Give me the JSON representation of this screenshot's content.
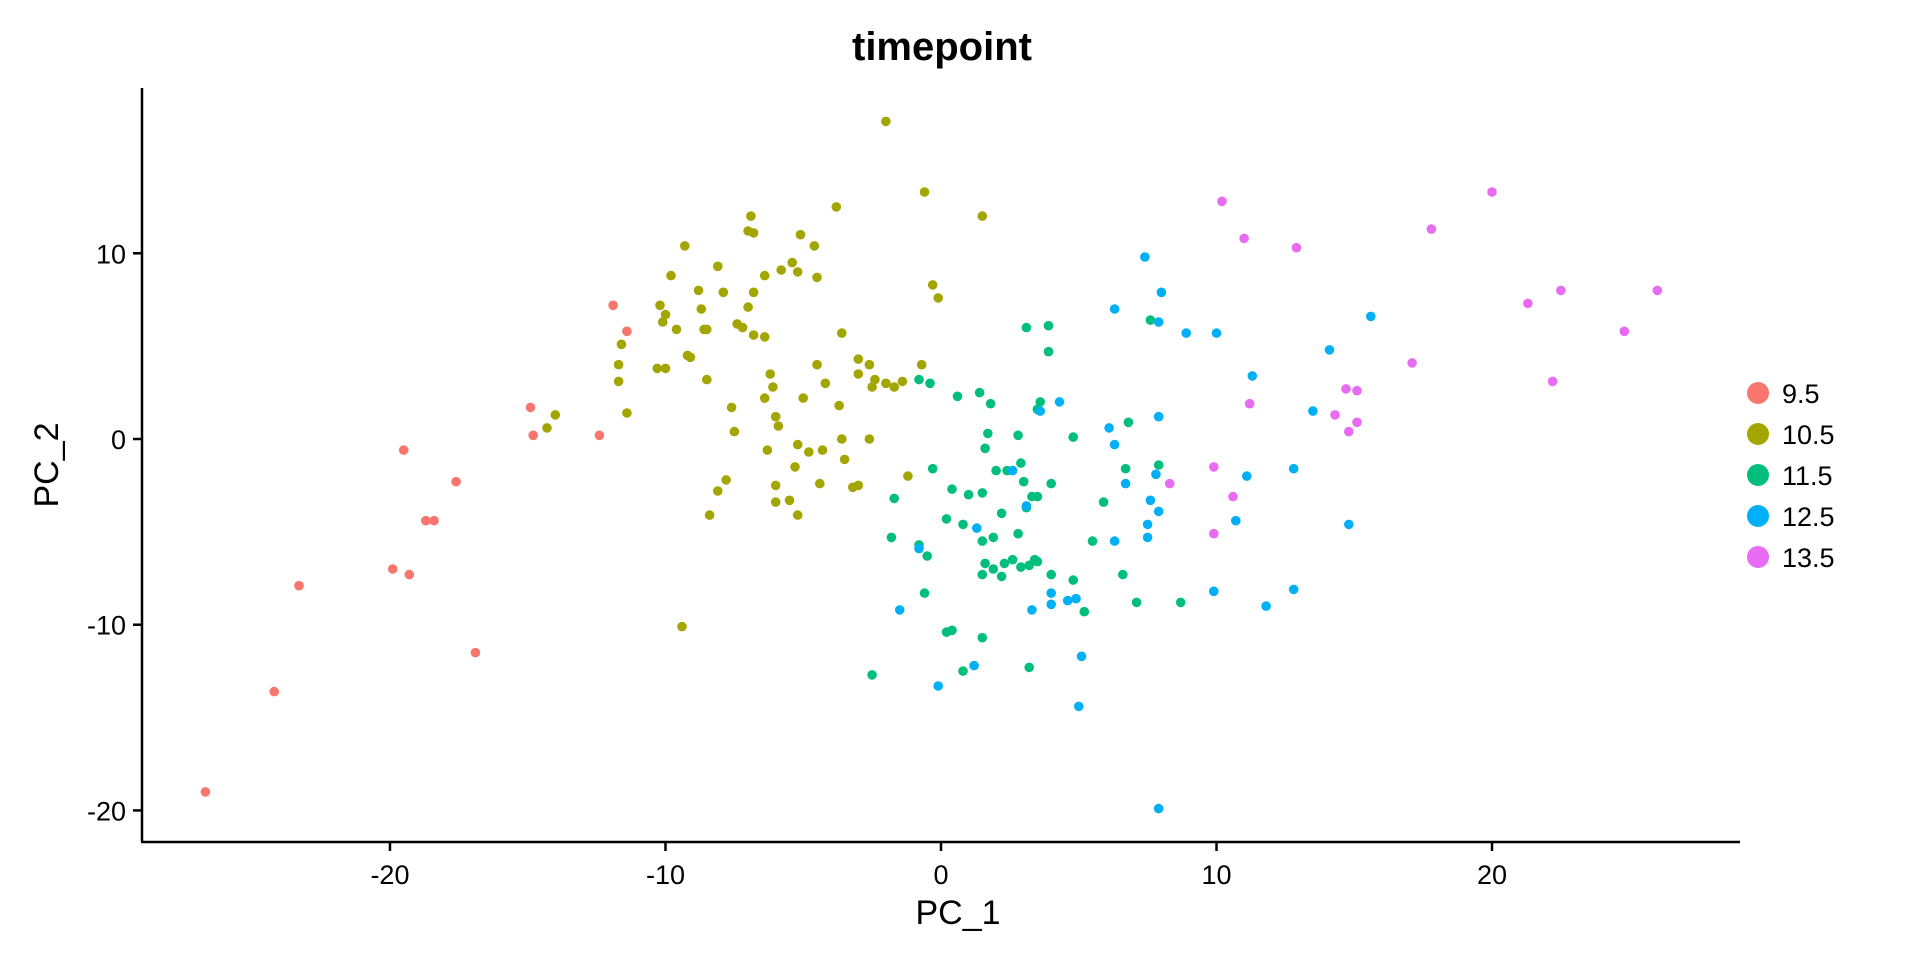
{
  "chart_data": {
    "type": "scatter",
    "title": "timepoint",
    "xlabel": "PC_1",
    "ylabel": "PC_2",
    "xlim": [
      -29,
      29
    ],
    "ylim": [
      -21.7,
      18.9
    ],
    "xticks": [
      -20,
      -10,
      0,
      10,
      20
    ],
    "yticks": [
      -20,
      -10,
      0,
      10
    ],
    "grid": false,
    "legend": "right",
    "series": [
      {
        "name": "9.5",
        "color": "#F8766D",
        "points": [
          [
            -26.7,
            -19
          ],
          [
            -24.2,
            -13.6
          ],
          [
            -23.3,
            -7.9
          ],
          [
            -19.9,
            -7
          ],
          [
            -19.3,
            -7.3
          ],
          [
            -18.7,
            -4.4
          ],
          [
            -18.4,
            -4.4
          ],
          [
            -17.6,
            -2.3
          ],
          [
            -16.9,
            -11.5
          ],
          [
            -19.5,
            -0.6
          ],
          [
            -14.9,
            1.7
          ],
          [
            -14.8,
            0.2
          ],
          [
            -12.4,
            0.2
          ],
          [
            -11.9,
            7.2
          ],
          [
            -11.4,
            5.8
          ]
        ]
      },
      {
        "name": "10.5",
        "color": "#A3A500",
        "points": [
          [
            -2.0,
            17.1
          ],
          [
            -0.6,
            13.3
          ],
          [
            1.5,
            12
          ],
          [
            -3.8,
            12.5
          ],
          [
            -6.9,
            12
          ],
          [
            -7.0,
            11.2
          ],
          [
            -6.8,
            11.1
          ],
          [
            -5.1,
            11
          ],
          [
            -9.3,
            10.4
          ],
          [
            -4.6,
            10.4
          ],
          [
            -5.4,
            9.5
          ],
          [
            -8.1,
            9.3
          ],
          [
            -5.8,
            9.1
          ],
          [
            -5.2,
            9
          ],
          [
            -6.4,
            8.8
          ],
          [
            -9.8,
            8.8
          ],
          [
            -4.5,
            8.7
          ],
          [
            -8.8,
            8
          ],
          [
            -7.9,
            7.9
          ],
          [
            -6.8,
            7.9
          ],
          [
            -0.3,
            8.3
          ],
          [
            -0.1,
            7.6
          ],
          [
            -10.2,
            7.2
          ],
          [
            -8.7,
            7
          ],
          [
            -7.0,
            7.1
          ],
          [
            -10.0,
            6.7
          ],
          [
            -7.4,
            6.2
          ],
          [
            -10.1,
            6.3
          ],
          [
            -9.6,
            5.9
          ],
          [
            -7.2,
            6
          ],
          [
            -6.8,
            5.6
          ],
          [
            -6.4,
            5.5
          ],
          [
            -8.6,
            5.9
          ],
          [
            -8.5,
            5.9
          ],
          [
            -3.6,
            5.7
          ],
          [
            -11.6,
            5.1
          ],
          [
            -9.2,
            4.5
          ],
          [
            -9.1,
            4.4
          ],
          [
            -11.7,
            4.0
          ],
          [
            -10.3,
            3.8
          ],
          [
            -10.0,
            3.8
          ],
          [
            -4.5,
            4.0
          ],
          [
            -2.6,
            4.0
          ],
          [
            -3.0,
            4.3
          ],
          [
            -6.2,
            3.5
          ],
          [
            -4.2,
            3.0
          ],
          [
            -8.5,
            3.2
          ],
          [
            -11.7,
            3.1
          ],
          [
            -2.4,
            3.2
          ],
          [
            -2.0,
            3.0
          ],
          [
            -1.4,
            3.1
          ],
          [
            -2.5,
            2.8
          ],
          [
            -1.7,
            2.8
          ],
          [
            -3.0,
            3.5
          ],
          [
            -7.6,
            1.7
          ],
          [
            -6.1,
            2.8
          ],
          [
            -6.4,
            2.2
          ],
          [
            -5.0,
            2.2
          ],
          [
            -3.7,
            1.8
          ],
          [
            -0.7,
            4.0
          ],
          [
            -11.4,
            1.4
          ],
          [
            -14.0,
            1.3
          ],
          [
            -14.3,
            0.6
          ],
          [
            -7.5,
            0.4
          ],
          [
            -6.0,
            1.2
          ],
          [
            -5.9,
            0.7
          ],
          [
            -3.6,
            0.0
          ],
          [
            -2.6,
            0.0
          ],
          [
            -5.2,
            -0.3
          ],
          [
            -4.8,
            -0.7
          ],
          [
            -4.3,
            -0.6
          ],
          [
            -3.5,
            -1.1
          ],
          [
            -4.4,
            -2.4
          ],
          [
            -6.0,
            -2.5
          ],
          [
            -7.8,
            -2.2
          ],
          [
            -8.1,
            -2.8
          ],
          [
            -5.5,
            -3.3
          ],
          [
            -6.0,
            -3.4
          ],
          [
            -5.2,
            -4.1
          ],
          [
            -8.4,
            -4.1
          ],
          [
            -3.2,
            -2.6
          ],
          [
            -3.0,
            -2.5
          ],
          [
            -1.2,
            -2.0
          ],
          [
            -9.4,
            -10.1
          ],
          [
            -5.3,
            -1.5
          ],
          [
            -6.3,
            -0.6
          ]
        ]
      },
      {
        "name": "11.5",
        "color": "#00BF7D",
        "points": [
          [
            7.6,
            6.4
          ],
          [
            3.1,
            6.0
          ],
          [
            3.9,
            6.1
          ],
          [
            3.9,
            4.7
          ],
          [
            -0.8,
            3.2
          ],
          [
            -0.4,
            3.0
          ],
          [
            0.6,
            2.3
          ],
          [
            1.4,
            2.5
          ],
          [
            1.8,
            1.9
          ],
          [
            3.6,
            2.0
          ],
          [
            3.5,
            1.6
          ],
          [
            1.7,
            0.3
          ],
          [
            2.8,
            0.2
          ],
          [
            4.8,
            0.1
          ],
          [
            6.8,
            0.9
          ],
          [
            1.6,
            -0.5
          ],
          [
            2.0,
            -1.7
          ],
          [
            2.4,
            -1.7
          ],
          [
            2.9,
            -1.3
          ],
          [
            3.0,
            -2.3
          ],
          [
            3.3,
            -3.1
          ],
          [
            3.5,
            -3.1
          ],
          [
            4.0,
            -2.4
          ],
          [
            6.7,
            -1.6
          ],
          [
            3.1,
            -3.7
          ],
          [
            1.5,
            -2.9
          ],
          [
            7.9,
            -1.4
          ],
          [
            -0.3,
            -1.6
          ],
          [
            0.4,
            -2.7
          ],
          [
            1.0,
            -3.0
          ],
          [
            0.2,
            -4.3
          ],
          [
            0.8,
            -4.6
          ],
          [
            2.2,
            -4.0
          ],
          [
            2.8,
            -5.1
          ],
          [
            -1.7,
            -3.2
          ],
          [
            -1.8,
            -5.3
          ],
          [
            -0.8,
            -5.7
          ],
          [
            -0.5,
            -6.3
          ],
          [
            1.5,
            -5.5
          ],
          [
            1.9,
            -5.3
          ],
          [
            1.6,
            -6.7
          ],
          [
            1.9,
            -7.0
          ],
          [
            2.3,
            -6.7
          ],
          [
            2.6,
            -6.5
          ],
          [
            3.2,
            -6.8
          ],
          [
            3.4,
            -6.5
          ],
          [
            2.9,
            -6.9
          ],
          [
            4.0,
            -7.3
          ],
          [
            1.5,
            -7.3
          ],
          [
            2.2,
            -7.4
          ],
          [
            4.8,
            -7.6
          ],
          [
            5.9,
            -3.4
          ],
          [
            5.5,
            -5.5
          ],
          [
            6.6,
            -7.3
          ],
          [
            -0.6,
            -8.3
          ],
          [
            0.2,
            -10.4
          ],
          [
            0.4,
            -10.3
          ],
          [
            1.5,
            -10.7
          ],
          [
            0.8,
            -12.5
          ],
          [
            3.2,
            -12.3
          ],
          [
            5.2,
            -9.3
          ],
          [
            7.1,
            -8.8
          ],
          [
            8.7,
            -8.8
          ],
          [
            -2.5,
            -12.7
          ],
          [
            3.5,
            -6.6
          ]
        ]
      },
      {
        "name": "12.5",
        "color": "#00B0F6",
        "points": [
          [
            7.4,
            9.8
          ],
          [
            8.0,
            7.9
          ],
          [
            6.3,
            7.0
          ],
          [
            7.9,
            6.3
          ],
          [
            8.9,
            5.7
          ],
          [
            10.0,
            5.7
          ],
          [
            15.6,
            6.6
          ],
          [
            14.1,
            4.8
          ],
          [
            11.3,
            3.4
          ],
          [
            4.3,
            2.0
          ],
          [
            3.6,
            1.5
          ],
          [
            13.5,
            1.5
          ],
          [
            7.9,
            1.2
          ],
          [
            6.1,
            0.6
          ],
          [
            6.3,
            -0.3
          ],
          [
            7.8,
            -1.9
          ],
          [
            6.7,
            -2.4
          ],
          [
            11.1,
            -2.0
          ],
          [
            12.8,
            -1.6
          ],
          [
            7.6,
            -3.3
          ],
          [
            7.9,
            -3.9
          ],
          [
            3.1,
            -3.6
          ],
          [
            2.6,
            -1.7
          ],
          [
            1.3,
            -4.8
          ],
          [
            7.5,
            -4.6
          ],
          [
            7.5,
            -5.3
          ],
          [
            6.3,
            -5.5
          ],
          [
            10.7,
            -4.4
          ],
          [
            14.8,
            -4.6
          ],
          [
            -0.8,
            -5.9
          ],
          [
            9.9,
            -8.2
          ],
          [
            11.8,
            -9.0
          ],
          [
            12.8,
            -8.1
          ],
          [
            3.3,
            -9.2
          ],
          [
            4.0,
            -8.3
          ],
          [
            4.0,
            -8.9
          ],
          [
            4.6,
            -8.7
          ],
          [
            4.9,
            -8.6
          ],
          [
            -1.5,
            -9.2
          ],
          [
            1.2,
            -12.2
          ],
          [
            -0.1,
            -13.3
          ],
          [
            5.1,
            -11.7
          ],
          [
            5.0,
            -14.4
          ],
          [
            7.9,
            -19.9
          ]
        ]
      },
      {
        "name": "13.5",
        "color": "#E76BF3",
        "points": [
          [
            10.2,
            12.8
          ],
          [
            20.0,
            13.3
          ],
          [
            11.0,
            10.8
          ],
          [
            12.9,
            10.3
          ],
          [
            17.8,
            11.3
          ],
          [
            21.3,
            7.3
          ],
          [
            22.5,
            8.0
          ],
          [
            26.0,
            8.0
          ],
          [
            24.8,
            5.8
          ],
          [
            17.1,
            4.1
          ],
          [
            22.2,
            3.1
          ],
          [
            14.7,
            2.7
          ],
          [
            15.1,
            2.6
          ],
          [
            11.2,
            1.9
          ],
          [
            14.3,
            1.3
          ],
          [
            15.1,
            0.9
          ],
          [
            14.8,
            0.4
          ],
          [
            9.9,
            -1.5
          ],
          [
            8.3,
            -2.4
          ],
          [
            10.6,
            -3.1
          ],
          [
            9.9,
            -5.1
          ]
        ]
      }
    ]
  }
}
